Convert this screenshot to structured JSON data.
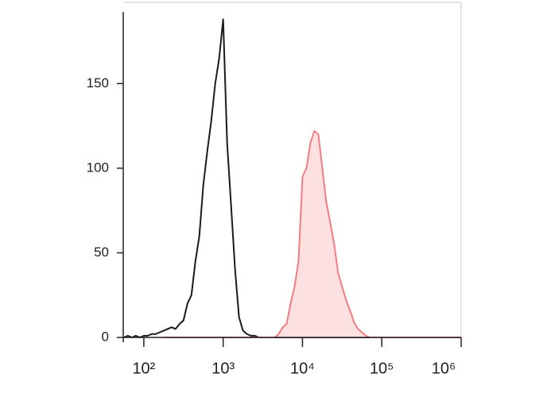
{
  "chart_data": {
    "type": "line",
    "x_log": true,
    "xlim": [
      55,
      1000000
    ],
    "ylim": [
      0,
      198
    ],
    "xticks": [
      {
        "value": 100,
        "label": "10²"
      },
      {
        "value": 1000,
        "label": "10³"
      },
      {
        "value": 10000,
        "label": "10⁴"
      },
      {
        "value": 100000,
        "label": "10⁵"
      },
      {
        "value": 1000000,
        "label": "10⁶"
      }
    ],
    "yticks": [
      0,
      50,
      100,
      150
    ],
    "x": [
      56,
      63,
      71,
      79,
      89,
      100,
      112,
      126,
      141,
      158,
      178,
      200,
      224,
      251,
      282,
      316,
      355,
      398,
      447,
      501,
      562,
      631,
      708,
      794,
      891,
      1000,
      1122,
      1259,
      1413,
      1585,
      1778,
      1995,
      2239,
      2512,
      2818,
      3162,
      3548,
      3981,
      4467,
      5012,
      5623,
      6310,
      7079,
      7943,
      8913,
      10000,
      11220,
      12589,
      14125,
      15849,
      17783,
      19953,
      22387,
      25119,
      28184,
      31623,
      35481,
      39811,
      44668,
      50119,
      56234,
      63096,
      70795,
      79433,
      89125,
      100000,
      1000000
    ],
    "series": [
      {
        "color": "#1a1a1a",
        "values": [
          0,
          1,
          0,
          1,
          0,
          1,
          1,
          2,
          2,
          3,
          4,
          5,
          6,
          5,
          8,
          10,
          20,
          25,
          45,
          60,
          90,
          110,
          128,
          150,
          165,
          188,
          115,
          78,
          40,
          12,
          4,
          2,
          1,
          1,
          0,
          0,
          0,
          0,
          0,
          0,
          0,
          0,
          0,
          0,
          0,
          0,
          0,
          0,
          0,
          0,
          0,
          0,
          0,
          0,
          0,
          0,
          0,
          0,
          0,
          0,
          0,
          0,
          0,
          0,
          0,
          0,
          0
        ]
      },
      {
        "color": "#f47c80",
        "fill": "#fde0e0",
        "values": [
          null,
          null,
          null,
          null,
          null,
          null,
          null,
          null,
          null,
          null,
          0,
          0,
          0,
          0,
          0,
          0,
          0,
          0,
          0,
          0,
          0,
          0,
          0,
          0,
          0,
          0,
          0,
          0,
          0,
          0,
          0,
          0,
          0,
          0,
          0,
          0,
          0,
          0,
          0,
          2,
          6,
          8,
          20,
          30,
          45,
          95,
          100,
          115,
          122,
          120,
          100,
          80,
          68,
          55,
          38,
          30,
          22,
          16,
          9,
          5,
          3,
          1,
          0,
          0,
          0,
          0,
          0
        ]
      }
    ]
  }
}
